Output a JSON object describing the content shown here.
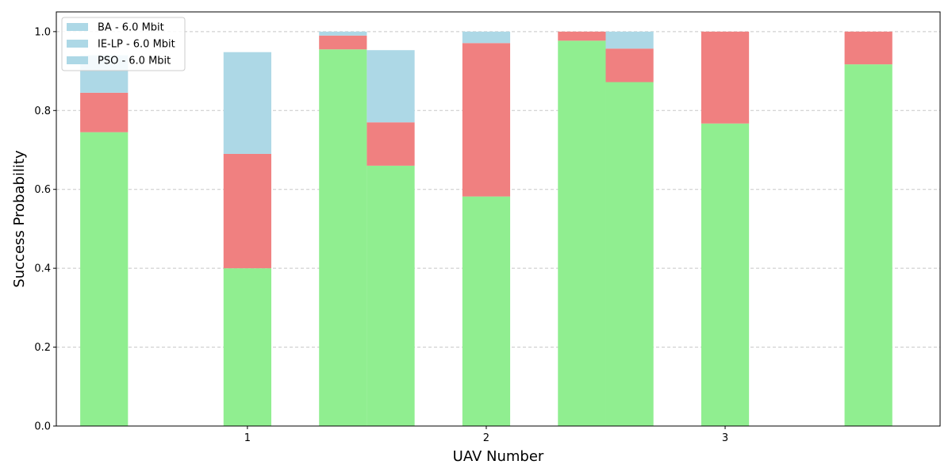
{
  "chart_data": {
    "type": "bar",
    "stacked": true,
    "xlabel": "UAV Number",
    "ylabel": "Success Probability",
    "ylim": [
      0,
      1.05
    ],
    "xlim": [
      0.2,
      3.9
    ],
    "x_ticks": [
      1,
      2,
      3
    ],
    "x_tick_labels": [
      "1",
      "2",
      "3"
    ],
    "y_ticks": [
      0.0,
      0.2,
      0.4,
      0.6,
      0.8,
      1.0
    ],
    "y_tick_labels": [
      "0.0",
      "0.2",
      "0.4",
      "0.6",
      "0.8",
      "1.0"
    ],
    "grid": "y-dashed",
    "legend_position": "top-left",
    "bar_width": 0.2,
    "colors": {
      "bottom": "#90ee90",
      "middle": "#f08080",
      "top": "#add8e6"
    },
    "legend": [
      {
        "label": "BA - 6.0 Mbit",
        "color": "#add8e6"
      },
      {
        "label": "IE-LP - 6.0 Mbit",
        "color": "#add8e6"
      },
      {
        "label": "PSO - 6.0 Mbit",
        "color": "#add8e6"
      }
    ],
    "bars": [
      {
        "x": 0.4,
        "segments": [
          0.745,
          0.1,
          0.095
        ]
      },
      {
        "x": 1.0,
        "segments": [
          0.4,
          0.29,
          0.258
        ]
      },
      {
        "x": 1.4,
        "segments": [
          0.955,
          0.035,
          0.01
        ]
      },
      {
        "x": 1.6,
        "segments": [
          0.66,
          0.11,
          0.183
        ]
      },
      {
        "x": 2.0,
        "segments": [
          0.582,
          0.389,
          0.029
        ]
      },
      {
        "x": 2.4,
        "segments": [
          0.977,
          0.023,
          0.0
        ]
      },
      {
        "x": 2.6,
        "segments": [
          0.872,
          0.085,
          0.043
        ]
      },
      {
        "x": 3.0,
        "segments": [
          0.767,
          0.233,
          0.0
        ]
      },
      {
        "x": 3.6,
        "segments": [
          0.917,
          0.083,
          0.0
        ]
      }
    ]
  }
}
